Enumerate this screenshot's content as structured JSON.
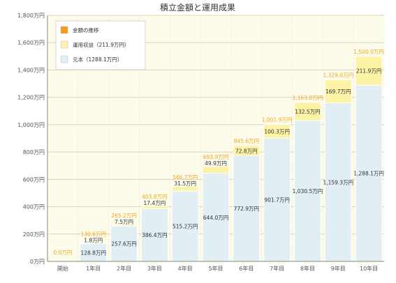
{
  "colors": {
    "plot_bg": "#fdfbea",
    "grid": "#d9d4b8",
    "axis": "#8a8a6a",
    "principal": "#e1eef4",
    "gain": "#fdf3a6",
    "total_label": "#f5a623",
    "legend_total": "#f79a1e",
    "text": "#333333"
  },
  "chart_data": {
    "type": "bar",
    "stacked": true,
    "title": "積立金額と運用成果",
    "categories": [
      "開始",
      "1年目",
      "2年目",
      "3年目",
      "4年目",
      "5年目",
      "6年目",
      "7年目",
      "8年目",
      "9年目",
      "10年目"
    ],
    "series": [
      {
        "name": "元本（1288.1万円）",
        "values": [
          0,
          128.8,
          257.6,
          386.4,
          515.2,
          644.0,
          772.9,
          901.7,
          1030.5,
          1159.3,
          1288.1
        ],
        "labels": [
          "",
          "128.8万円",
          "257.6万円",
          "386.4万円",
          "515.2万円",
          "644.0万円",
          "772.9万円",
          "901.7万円",
          "1,030.5万円",
          "1,159.3万円",
          "1,288.1万円"
        ]
      },
      {
        "name": "運用収益（211.9万円）",
        "values": [
          0,
          1.8,
          7.5,
          17.4,
          31.5,
          49.9,
          72.8,
          100.3,
          132.5,
          169.7,
          211.9
        ],
        "labels": [
          "",
          "1.8万円",
          "7.5万円",
          "17.4万円",
          "31.5万円",
          "49.9万円",
          "72.8万円",
          "100.3万円",
          "132.5万円",
          "169.7万円",
          "211.9万円"
        ]
      }
    ],
    "totals": {
      "name": "金額の推移",
      "values": [
        0,
        130.6,
        265.2,
        403.8,
        546.7,
        693.9,
        845.6,
        1001.9,
        1163.0,
        1329.0,
        1500.0
      ],
      "labels": [
        "0.0万円",
        "130.6万円",
        "265.2万円",
        "403.8万円",
        "546.7万円",
        "693.9万円",
        "845.6万円",
        "1,001.9万円",
        "1,163.0万円",
        "1,329.0万円",
        "1,500.0万円"
      ]
    },
    "ylim": [
      0,
      1800
    ],
    "yticks": [
      0,
      200,
      400,
      600,
      800,
      1000,
      1200,
      1400,
      1600,
      1800
    ],
    "ytick_labels": [
      "0万円",
      "200万円",
      "400万円",
      "600万円",
      "800万円",
      "1,000万円",
      "1,200万円",
      "1,400万円",
      "1,600万円",
      "1,800万円"
    ],
    "grid": true,
    "legend_position": "top-left"
  }
}
